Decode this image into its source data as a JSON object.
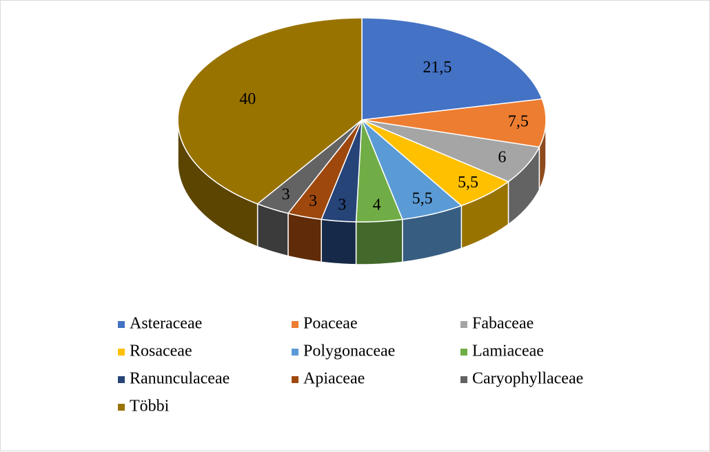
{
  "chart_data": {
    "type": "pie",
    "categories": [
      "Asteraceae",
      "Poaceae",
      "Fabaceae",
      "Rosaceae",
      "Polygonaceae",
      "Lamiaceae",
      "Ranunculaceae",
      "Apiaceae",
      "Caryophyllaceae",
      "Többi"
    ],
    "values": [
      21.5,
      7.5,
      6,
      5.5,
      5.5,
      4,
      3,
      3,
      3,
      40
    ],
    "value_labels": [
      "21,5",
      "7,5",
      "6",
      "5,5",
      "5,5",
      "4",
      "3",
      "3",
      "3",
      "40"
    ],
    "colors": [
      "#4472c4",
      "#ed7d31",
      "#a5a5a5",
      "#ffc000",
      "#5b9bd5",
      "#70ad47",
      "#264478",
      "#9e480e",
      "#636363",
      "#997300"
    ],
    "legend": "bottom"
  }
}
